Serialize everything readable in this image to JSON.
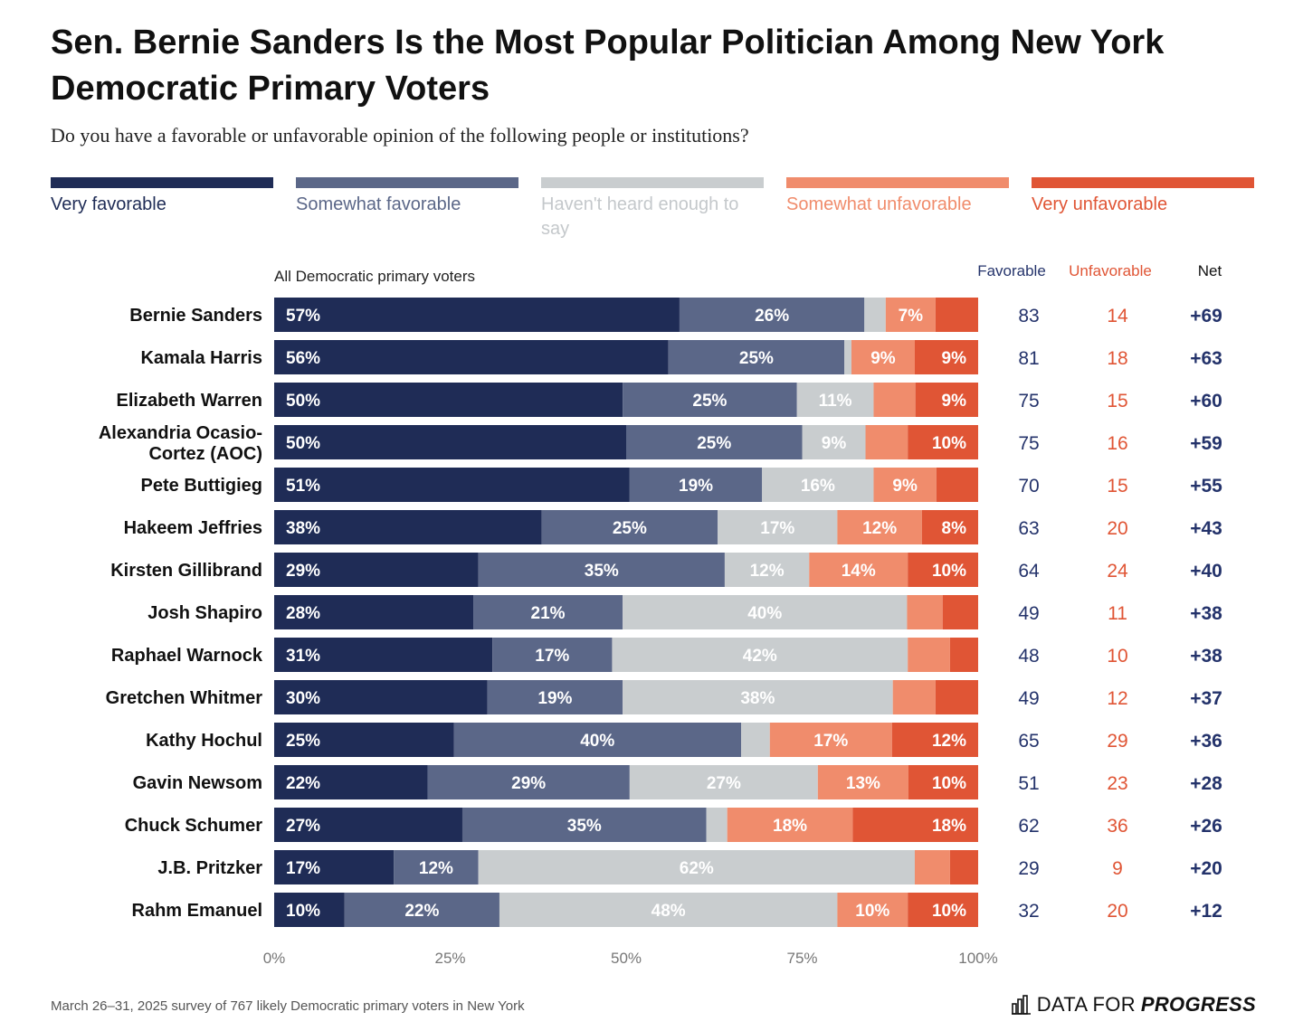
{
  "title": "Sen. Bernie Sanders Is the Most Popular Politician Among New York Democratic Primary Voters",
  "subtitle": "Do you have a favorable or unfavorable opinion of the following people or institutions?",
  "footnote": "March 26–31, 2025 survey of 767 likely Democratic primary voters in New York",
  "logo": {
    "text": "DATA FOR",
    "bold": "PROGRESS"
  },
  "colors": {
    "very_favorable": "#1f2c56",
    "somewhat_favorable": "#5b6788",
    "not_heard": "#c9cdcf",
    "somewhat_unfavorable": "#f08c6c",
    "very_unfavorable": "#e05535",
    "favorable_header": "#24336b",
    "unfavorable_header": "#e05535"
  },
  "legend": [
    {
      "label": "Very favorable",
      "color": "#1f2c56",
      "text_color": "#1f2c56"
    },
    {
      "label": "Somewhat favorable",
      "color": "#5b6788",
      "text_color": "#5b6788"
    },
    {
      "label": "Haven't heard enough to say",
      "color": "#c9cdcf",
      "text_color": "#c4c8cb"
    },
    {
      "label": "Somewhat unfavorable",
      "color": "#f08c6c",
      "text_color": "#f08c6c"
    },
    {
      "label": "Very unfavorable",
      "color": "#e05535",
      "text_color": "#e05535"
    }
  ],
  "chart_data": {
    "type": "bar",
    "orientation": "horizontal",
    "stacked": true,
    "group_label": "All Democratic primary voters",
    "categories": [
      "Bernie Sanders",
      "Kamala Harris",
      "Elizabeth Warren",
      "Alexandria Ocasio-Cortez (AOC)",
      "Pete Buttigieg",
      "Hakeem Jeffries",
      "Kirsten Gillibrand",
      "Josh Shapiro",
      "Raphael Warnock",
      "Gretchen Whitmer",
      "Kathy Hochul",
      "Gavin Newsom",
      "Chuck Schumer",
      "J.B. Pritzker",
      "Rahm Emanuel"
    ],
    "category_display": [
      [
        "Bernie Sanders"
      ],
      [
        "Kamala Harris"
      ],
      [
        "Elizabeth Warren"
      ],
      [
        "Alexandria Ocasio-",
        "Cortez (AOC)"
      ],
      [
        "Pete Buttigieg"
      ],
      [
        "Hakeem Jeffries"
      ],
      [
        "Kirsten Gillibrand"
      ],
      [
        "Josh Shapiro"
      ],
      [
        "Raphael Warnock"
      ],
      [
        "Gretchen Whitmer"
      ],
      [
        "Kathy Hochul"
      ],
      [
        "Gavin Newsom"
      ],
      [
        "Chuck Schumer"
      ],
      [
        "J.B. Pritzker"
      ],
      [
        "Rahm Emanuel"
      ]
    ],
    "series": [
      {
        "name": "Very favorable",
        "values": [
          57,
          56,
          50,
          50,
          51,
          38,
          29,
          28,
          31,
          30,
          25,
          22,
          27,
          17,
          10
        ],
        "labels": [
          "57%",
          "56%",
          "50%",
          "50%",
          "51%",
          "38%",
          "29%",
          "28%",
          "31%",
          "30%",
          "25%",
          "22%",
          "27%",
          "17%",
          "10%"
        ]
      },
      {
        "name": "Somewhat favorable",
        "values": [
          26,
          25,
          25,
          25,
          19,
          25,
          35,
          21,
          17,
          19,
          40,
          29,
          35,
          12,
          22
        ],
        "labels": [
          "26%",
          "25%",
          "25%",
          "25%",
          "19%",
          "25%",
          "35%",
          "21%",
          "17%",
          "19%",
          "40%",
          "29%",
          "35%",
          "12%",
          "22%"
        ]
      },
      {
        "name": "Haven't heard enough to say",
        "values": [
          3,
          1,
          11,
          9,
          16,
          17,
          12,
          40,
          42,
          38,
          4,
          27,
          3,
          62,
          48
        ],
        "labels": [
          "",
          "",
          "11%",
          "9%",
          "16%",
          "17%",
          "12%",
          "40%",
          "42%",
          "38%",
          "",
          "27%",
          "",
          "62%",
          "48%"
        ]
      },
      {
        "name": "Somewhat unfavorable",
        "values": [
          7,
          9,
          6,
          6,
          9,
          12,
          14,
          5,
          6,
          6,
          17,
          13,
          18,
          5,
          10
        ],
        "labels": [
          "7%",
          "9%",
          "",
          "",
          "9%",
          "12%",
          "14%",
          "",
          "",
          "",
          "17%",
          "13%",
          "18%",
          "",
          "10%"
        ]
      },
      {
        "name": "Very unfavorable",
        "values": [
          6,
          9,
          9,
          10,
          6,
          8,
          10,
          5,
          4,
          6,
          12,
          10,
          18,
          4,
          10
        ],
        "labels": [
          "",
          "9%",
          "9%",
          "10%",
          "",
          "8%",
          "10%",
          "",
          "",
          "",
          "12%",
          "10%",
          "18%",
          "",
          "10%"
        ]
      }
    ],
    "table": {
      "headers": [
        "Favorable",
        "Unfavorable",
        "Net"
      ],
      "favorable": [
        "83",
        "81",
        "75",
        "75",
        "70",
        "63",
        "64",
        "49",
        "48",
        "49",
        "65",
        "51",
        "62",
        "29",
        "32"
      ],
      "unfavorable": [
        "14",
        "18",
        "15",
        "16",
        "15",
        "20",
        "24",
        "11",
        "10",
        "12",
        "29",
        "23",
        "36",
        "9",
        "20"
      ],
      "net": [
        "+69",
        "+63",
        "+60",
        "+59",
        "+55",
        "+43",
        "+40",
        "+38",
        "+38",
        "+37",
        "+36",
        "+28",
        "+26",
        "+20",
        "+12"
      ]
    },
    "xlim": [
      0,
      100
    ],
    "xticks": [
      0,
      25,
      50,
      75,
      100
    ],
    "xtick_labels": [
      "0%",
      "25%",
      "50%",
      "75%",
      "100%"
    ],
    "grid": false,
    "legend_position": "top"
  }
}
